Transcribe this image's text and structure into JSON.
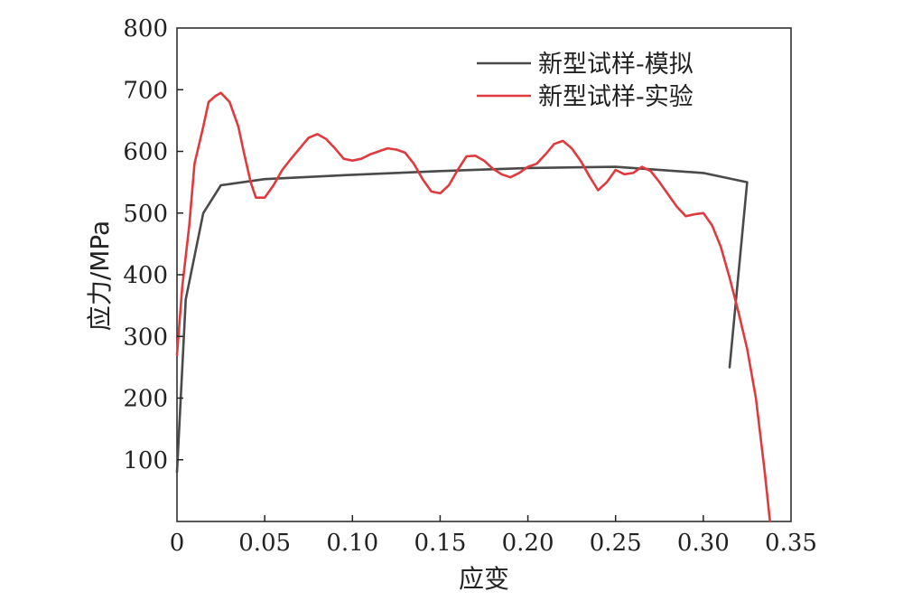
{
  "chart_data": {
    "type": "line",
    "title": "",
    "xlabel": "应变",
    "ylabel": "应力/MPa",
    "xlim": [
      0,
      0.35
    ],
    "ylim": [
      0,
      800
    ],
    "x_ticks": [
      0,
      0.05,
      0.1,
      0.15,
      0.2,
      0.25,
      0.3,
      0.35
    ],
    "x_tick_labels": [
      "0",
      "0.05",
      "0.10",
      "0.15",
      "0.20",
      "0.25",
      "0.30",
      "0.35"
    ],
    "y_ticks": [
      100,
      200,
      300,
      400,
      500,
      600,
      700,
      800
    ],
    "y_tick_labels": [
      "100",
      "200",
      "300",
      "400",
      "500",
      "600",
      "700",
      "800"
    ],
    "grid": false,
    "legend_position": "top-right",
    "series": [
      {
        "name": "新型试样-模拟",
        "color": "#4a4a4a",
        "points": [
          [
            0.0,
            80
          ],
          [
            0.005,
            360
          ],
          [
            0.015,
            500
          ],
          [
            0.025,
            545
          ],
          [
            0.05,
            555
          ],
          [
            0.1,
            562
          ],
          [
            0.15,
            568
          ],
          [
            0.2,
            573
          ],
          [
            0.25,
            575
          ],
          [
            0.3,
            565
          ],
          [
            0.325,
            550
          ],
          [
            0.315,
            250
          ]
        ]
      },
      {
        "name": "新型试样-实验",
        "color": "#e03a3e",
        "points": [
          [
            0.0,
            270
          ],
          [
            0.003,
            380
          ],
          [
            0.007,
            480
          ],
          [
            0.01,
            580
          ],
          [
            0.015,
            640
          ],
          [
            0.018,
            680
          ],
          [
            0.022,
            690
          ],
          [
            0.025,
            695
          ],
          [
            0.03,
            680
          ],
          [
            0.035,
            640
          ],
          [
            0.038,
            600
          ],
          [
            0.042,
            550
          ],
          [
            0.045,
            525
          ],
          [
            0.05,
            525
          ],
          [
            0.055,
            545
          ],
          [
            0.06,
            570
          ],
          [
            0.065,
            588
          ],
          [
            0.07,
            605
          ],
          [
            0.075,
            622
          ],
          [
            0.08,
            628
          ],
          [
            0.085,
            620
          ],
          [
            0.09,
            605
          ],
          [
            0.095,
            588
          ],
          [
            0.1,
            585
          ],
          [
            0.105,
            588
          ],
          [
            0.11,
            595
          ],
          [
            0.115,
            600
          ],
          [
            0.12,
            605
          ],
          [
            0.125,
            603
          ],
          [
            0.13,
            598
          ],
          [
            0.135,
            580
          ],
          [
            0.14,
            555
          ],
          [
            0.145,
            535
          ],
          [
            0.15,
            532
          ],
          [
            0.155,
            545
          ],
          [
            0.16,
            570
          ],
          [
            0.165,
            592
          ],
          [
            0.17,
            593
          ],
          [
            0.175,
            585
          ],
          [
            0.18,
            572
          ],
          [
            0.185,
            563
          ],
          [
            0.19,
            558
          ],
          [
            0.195,
            565
          ],
          [
            0.2,
            575
          ],
          [
            0.205,
            580
          ],
          [
            0.21,
            595
          ],
          [
            0.215,
            612
          ],
          [
            0.22,
            617
          ],
          [
            0.225,
            605
          ],
          [
            0.23,
            585
          ],
          [
            0.235,
            560
          ],
          [
            0.24,
            537
          ],
          [
            0.245,
            550
          ],
          [
            0.25,
            570
          ],
          [
            0.255,
            563
          ],
          [
            0.26,
            565
          ],
          [
            0.265,
            575
          ],
          [
            0.27,
            568
          ],
          [
            0.275,
            550
          ],
          [
            0.28,
            530
          ],
          [
            0.285,
            510
          ],
          [
            0.29,
            495
          ],
          [
            0.295,
            498
          ],
          [
            0.3,
            500
          ],
          [
            0.305,
            480
          ],
          [
            0.31,
            445
          ],
          [
            0.315,
            395
          ],
          [
            0.32,
            340
          ],
          [
            0.325,
            280
          ],
          [
            0.33,
            200
          ],
          [
            0.335,
            80
          ],
          [
            0.338,
            0
          ]
        ]
      }
    ]
  }
}
